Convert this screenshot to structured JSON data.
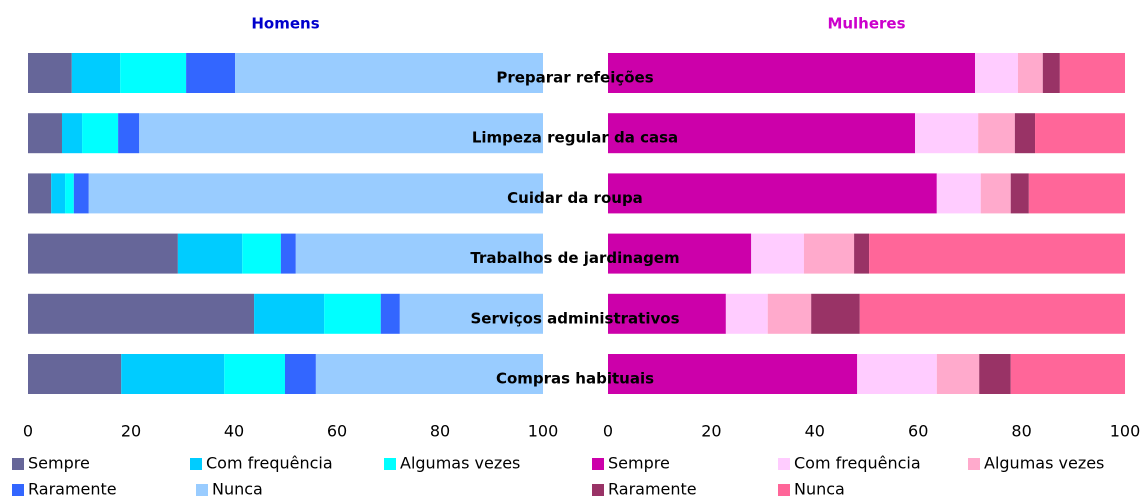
{
  "categories": [
    "Preparar refeições",
    "Limpeza regular da casa",
    "Cuidar da roupa",
    "Trabalhos de jardinagem",
    "Serviços administrativos",
    "Compras habituais"
  ],
  "chart_data": [
    {
      "type": "stacked-bar-horizontal",
      "title": "Homens",
      "title_color": "#0000cc",
      "xlim": [
        0,
        100
      ],
      "xticks": [
        0,
        20,
        40,
        60,
        80,
        100
      ],
      "series": [
        {
          "name": "Sempre",
          "color": "#666699",
          "values": [
            8.5,
            6.6,
            4.5,
            29.1,
            43.9,
            18.1
          ]
        },
        {
          "name": "Com frequência",
          "color": "#00ccff",
          "values": [
            9.4,
            3.9,
            2.7,
            12.5,
            13.6,
            20.0
          ]
        },
        {
          "name": "Algumas vezes",
          "color": "#00ffff",
          "values": [
            12.8,
            7.0,
            1.7,
            7.5,
            11.0,
            11.8
          ]
        },
        {
          "name": "Raramente",
          "color": "#3366ff",
          "values": [
            9.5,
            4.1,
            2.9,
            2.9,
            3.7,
            6.0
          ]
        },
        {
          "name": "Nunca",
          "color": "#99ccff",
          "values": [
            59.8,
            78.4,
            88.2,
            48.0,
            27.8,
            44.1
          ]
        }
      ]
    },
    {
      "type": "stacked-bar-horizontal",
      "title": "Mulheres",
      "title_color": "#cc00cc",
      "xlim": [
        0,
        100
      ],
      "xticks": [
        0,
        20,
        40,
        60,
        80,
        100
      ],
      "series": [
        {
          "name": "Sempre",
          "color": "#cc00aa",
          "values": [
            71.0,
            59.4,
            63.6,
            27.7,
            22.8,
            48.2
          ]
        },
        {
          "name": "Com frequência",
          "color": "#ffccff",
          "values": [
            8.3,
            12.2,
            8.5,
            10.2,
            8.1,
            15.4
          ]
        },
        {
          "name": "Algumas vezes",
          "color": "#ffaacc",
          "values": [
            4.8,
            7.1,
            5.8,
            9.7,
            8.4,
            8.2
          ]
        },
        {
          "name": "Raramente",
          "color": "#993366",
          "values": [
            3.3,
            3.9,
            3.5,
            2.9,
            9.4,
            6.1
          ]
        },
        {
          "name": "Nunca",
          "color": "#ff6699",
          "values": [
            12.6,
            17.4,
            18.6,
            49.5,
            51.3,
            22.1
          ]
        }
      ]
    }
  ]
}
